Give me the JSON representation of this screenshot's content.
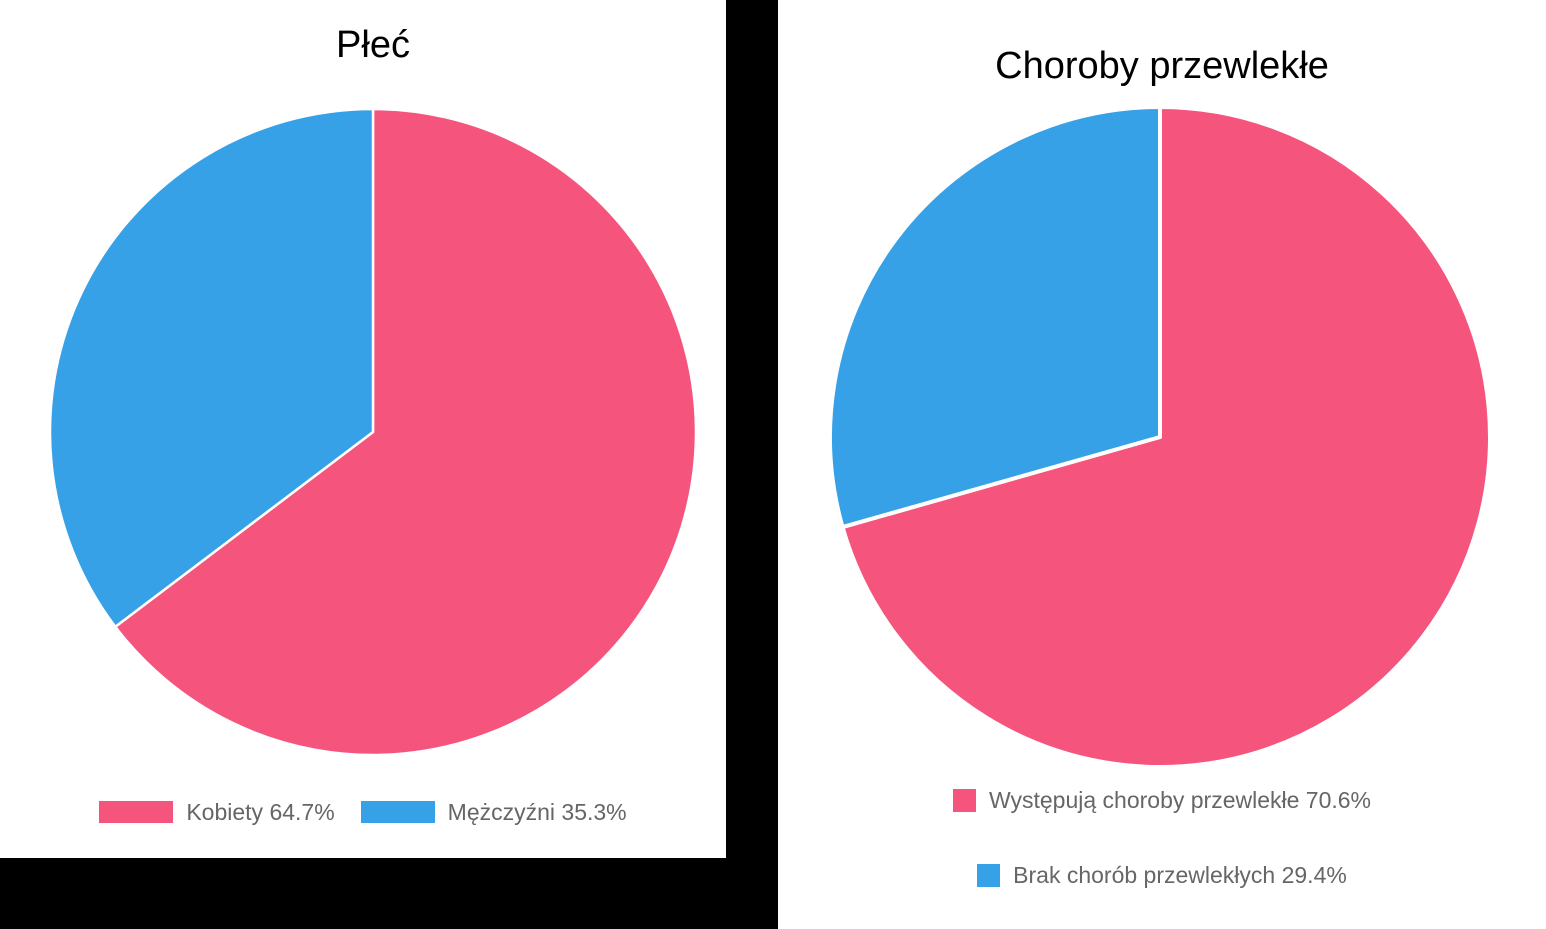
{
  "page": {
    "background_color": "#000000",
    "panel_color": "#ffffff"
  },
  "colors": {
    "pink": "#F5557D",
    "blue": "#37A1E8",
    "legend_text": "#666666",
    "title_text": "#000000",
    "slice_border": "#ffffff"
  },
  "chart_data": [
    {
      "type": "pie",
      "title": "Płeć",
      "categories": [
        "Kobiety",
        "Mężczyźni"
      ],
      "values": [
        64.7,
        35.3
      ],
      "unit": "percent",
      "colors": [
        "#F5557D",
        "#37A1E8"
      ],
      "legend_labels": [
        "Kobiety 64.7%",
        "Mężczyźni 35.3%"
      ],
      "legend_position": "bottom",
      "legend_layout": "horizontal",
      "start_angle": "top",
      "direction": "clockwise",
      "border_color": "#ffffff",
      "border_width": 2.5
    },
    {
      "type": "pie",
      "title": "Choroby przewlekłe",
      "categories": [
        "Występują choroby przewlekłe",
        "Brak chorób przewlekłych"
      ],
      "values": [
        70.6,
        29.4
      ],
      "unit": "percent",
      "colors": [
        "#F5557D",
        "#37A1E8"
      ],
      "legend_labels": [
        "Występują choroby przewlekłe 70.6%",
        "Brak chorób przewlekłych 29.4%"
      ],
      "legend_position": "bottom",
      "legend_layout": "vertical",
      "start_angle": "top",
      "direction": "clockwise",
      "border_color": "#ffffff",
      "border_width": 4
    }
  ]
}
